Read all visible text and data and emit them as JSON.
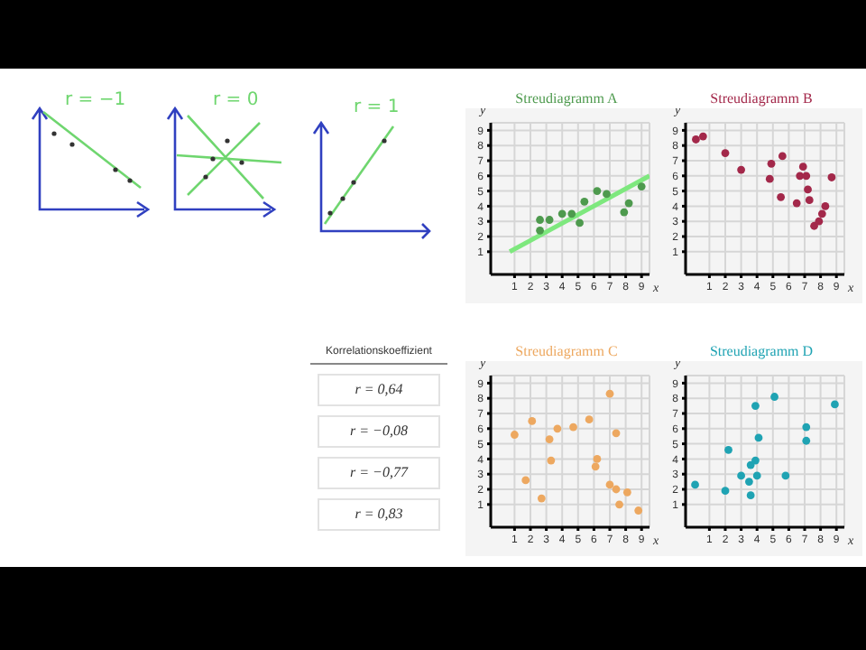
{
  "chart_data": [
    {
      "type": "other",
      "annotations": [
        "r = −1",
        "r = 0",
        "r = 1"
      ]
    },
    {
      "type": "scatter",
      "title": "Streudiagramm A",
      "xlabel": "x",
      "ylabel": "y",
      "xlim": [
        -0.5,
        9.5
      ],
      "ylim": [
        -0.5,
        9.5
      ],
      "xticks": [
        1,
        2,
        3,
        4,
        5,
        6,
        7,
        8,
        9
      ],
      "yticks": [
        1,
        2,
        3,
        4,
        5,
        6,
        7,
        8,
        9
      ],
      "grid": true,
      "series": [
        {
          "color": "#4e9a4e",
          "marker": "circle",
          "x": [
            2.6,
            3.2,
            4.0,
            4.6,
            5.1,
            5.4,
            6.2,
            6.8,
            7.9,
            8.2,
            9.0,
            2.6
          ],
          "values": [
            3.1,
            3.1,
            3.5,
            3.5,
            2.9,
            4.3,
            5.0,
            4.8,
            3.6,
            4.2,
            5.3,
            2.4
          ]
        },
        {
          "type": "line",
          "color": "#7ee87e",
          "x": [
            0.7,
            9.5
          ],
          "values": [
            1,
            6
          ]
        }
      ]
    },
    {
      "type": "scatter",
      "title": "Streudiagramm B",
      "xlabel": "x",
      "ylabel": "y",
      "xlim": [
        -0.5,
        9.5
      ],
      "ylim": [
        -0.5,
        9.5
      ],
      "xticks": [
        1,
        2,
        3,
        4,
        5,
        6,
        7,
        8,
        9
      ],
      "yticks": [
        1,
        2,
        3,
        4,
        5,
        6,
        7,
        8,
        9
      ],
      "grid": true,
      "series": [
        {
          "color": "#a3284a",
          "marker": "circle",
          "x": [
            0.15,
            0.6,
            2.0,
            3.0,
            4.9,
            4.8,
            5.6,
            5.5,
            6.5,
            6.9,
            6.7,
            7.1,
            7.2,
            7.3,
            7.6,
            7.9,
            8.1,
            8.3,
            8.7
          ],
          "values": [
            8.4,
            8.6,
            7.5,
            6.4,
            6.8,
            5.8,
            7.3,
            4.6,
            4.2,
            6.6,
            6.0,
            6.0,
            5.1,
            4.4,
            2.7,
            3.0,
            3.5,
            4.0,
            5.9
          ]
        }
      ]
    },
    {
      "type": "other",
      "title": "Korrelationskoeffizient",
      "annotations": [
        "r = 0,64",
        "r = −0,08",
        "r = −0,77",
        "r = 0,83"
      ]
    },
    {
      "type": "scatter",
      "title": "Streudiagramm C",
      "xlabel": "x",
      "ylabel": "y",
      "xlim": [
        -0.5,
        9.5
      ],
      "ylim": [
        -0.5,
        9.5
      ],
      "xticks": [
        1,
        2,
        3,
        4,
        5,
        6,
        7,
        8,
        9
      ],
      "yticks": [
        1,
        2,
        3,
        4,
        5,
        6,
        7,
        8,
        9
      ],
      "grid": true,
      "series": [
        {
          "color": "#eda860",
          "marker": "circle",
          "x": [
            1.0,
            2.1,
            1.7,
            2.7,
            3.2,
            3.7,
            3.3,
            4.7,
            5.7,
            6.2,
            6.1,
            7.0,
            7.4,
            7.0,
            7.4,
            7.6,
            8.1,
            8.8
          ],
          "values": [
            5.6,
            6.5,
            2.6,
            1.4,
            5.3,
            6.0,
            3.9,
            6.1,
            6.6,
            4.0,
            3.5,
            8.3,
            5.7,
            2.3,
            2.0,
            1.0,
            1.8,
            0.6
          ]
        }
      ]
    },
    {
      "type": "scatter",
      "title": "Streudiagramm D",
      "xlabel": "x",
      "ylabel": "y",
      "xlim": [
        -0.5,
        9.5
      ],
      "ylim": [
        -0.5,
        9.5
      ],
      "xticks": [
        1,
        2,
        3,
        4,
        5,
        6,
        7,
        8,
        9
      ],
      "yticks": [
        1,
        2,
        3,
        4,
        5,
        6,
        7,
        8,
        9
      ],
      "grid": true,
      "series": [
        {
          "color": "#1fa3b3",
          "marker": "circle",
          "x": [
            0.1,
            2.0,
            2.2,
            3.0,
            3.5,
            3.6,
            3.6,
            3.9,
            4.0,
            3.9,
            4.1,
            5.1,
            5.8,
            7.1,
            7.1,
            8.9
          ],
          "values": [
            2.3,
            1.9,
            4.6,
            2.9,
            2.5,
            1.6,
            3.6,
            3.9,
            2.9,
            7.5,
            5.4,
            8.1,
            2.9,
            6.1,
            5.2,
            7.6
          ]
        }
      ]
    }
  ]
}
